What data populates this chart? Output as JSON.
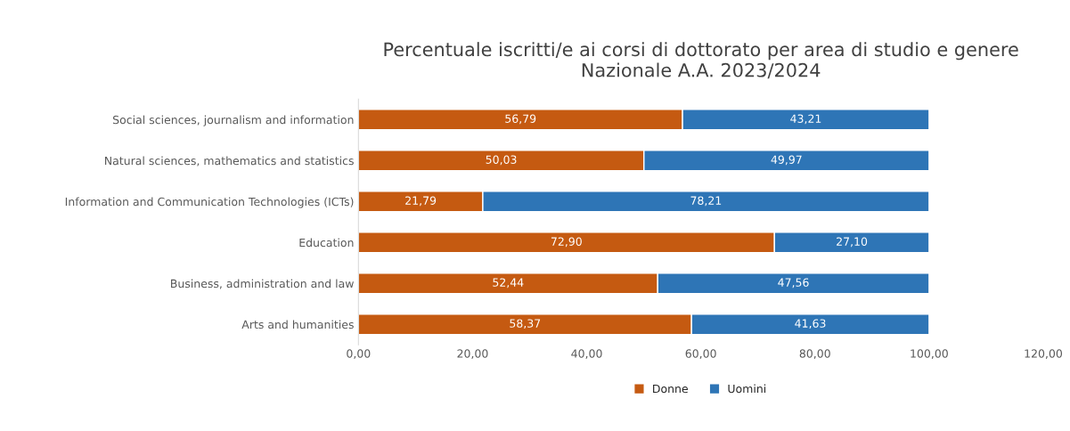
{
  "chart_data": {
    "type": "bar",
    "orientation": "horizontal",
    "stacked": true,
    "title": "Percentuale iscritti/e ai corsi di dottorato per area di studio e genere\nNazionale A.A. 2023/2024",
    "categories": [
      "Social sciences, journalism and information",
      "Natural sciences, mathematics and statistics",
      "Information and Communication Technologies (ICTs)",
      "Education",
      "Business, administration and law",
      "Arts and humanities"
    ],
    "series": [
      {
        "name": "Donne",
        "color": "#c55a11",
        "values": [
          56.79,
          50.03,
          21.79,
          72.9,
          52.44,
          58.37
        ],
        "value_labels": [
          "56,79",
          "50,03",
          "21,79",
          "72,90",
          "52,44",
          "58,37"
        ]
      },
      {
        "name": "Uomini",
        "color": "#2e75b6",
        "values": [
          43.21,
          49.97,
          78.21,
          27.1,
          47.56,
          41.63
        ],
        "value_labels": [
          "43,21",
          "49,97",
          "78,21",
          "27,10",
          "47,56",
          "41,63"
        ]
      }
    ],
    "xlim": [
      0,
      120
    ],
    "xticks": [
      {
        "value": 0,
        "label": "0,00"
      },
      {
        "value": 20,
        "label": "20,00"
      },
      {
        "value": 40,
        "label": "40,00"
      },
      {
        "value": 60,
        "label": "60,00"
      },
      {
        "value": 80,
        "label": "80,00"
      },
      {
        "value": 100,
        "label": "100,00"
      },
      {
        "value": 120,
        "label": "120,00"
      }
    ],
    "legend": "bottom",
    "grid": false
  }
}
